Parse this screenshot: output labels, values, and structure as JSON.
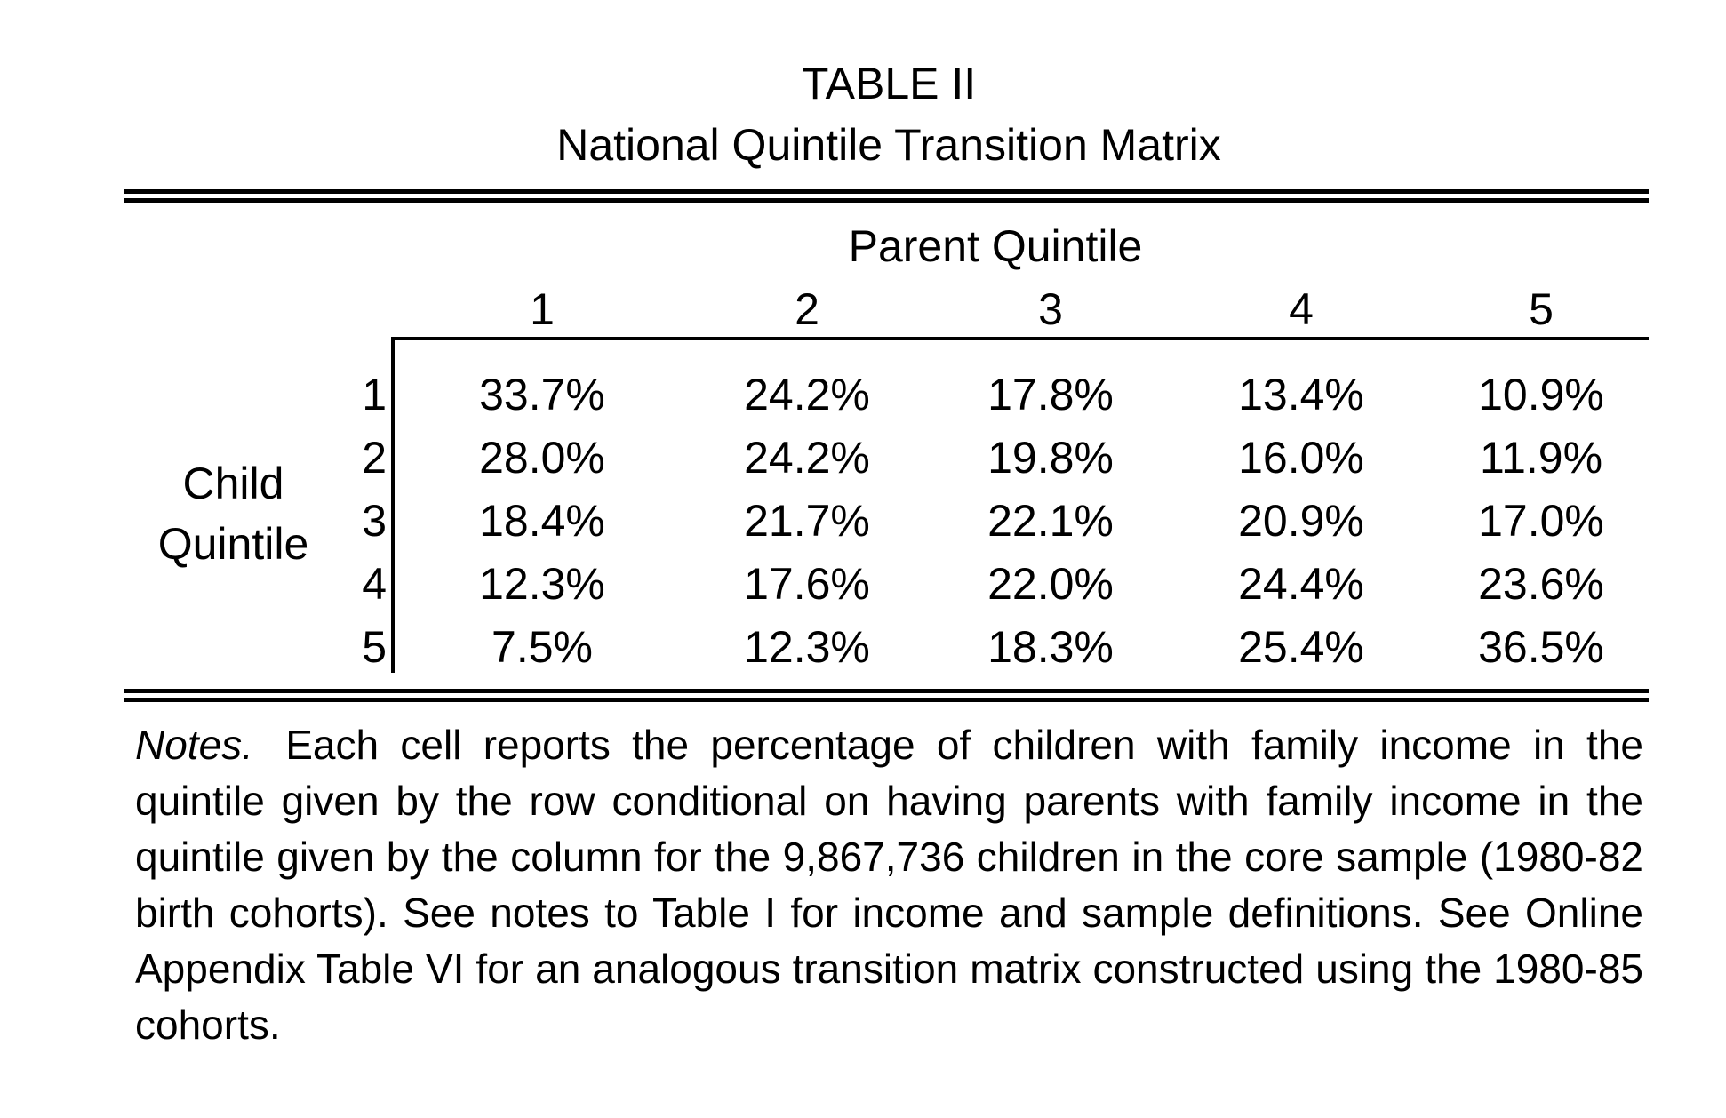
{
  "title": {
    "line1": "TABLE II",
    "line2": "National Quintile Transition Matrix"
  },
  "table": {
    "column_group_label": "Parent Quintile",
    "row_group_label_line1": "Child",
    "row_group_label_line2": "Quintile",
    "columns": [
      "1",
      "2",
      "3",
      "4",
      "5"
    ],
    "rows": [
      {
        "label": "1",
        "cells": [
          "33.7%",
          "24.2%",
          "17.8%",
          "13.4%",
          "10.9%"
        ]
      },
      {
        "label": "2",
        "cells": [
          "28.0%",
          "24.2%",
          "19.8%",
          "16.0%",
          "11.9%"
        ]
      },
      {
        "label": "3",
        "cells": [
          "18.4%",
          "21.7%",
          "22.1%",
          "20.9%",
          "17.0%"
        ]
      },
      {
        "label": "4",
        "cells": [
          "12.3%",
          "17.6%",
          "22.0%",
          "24.4%",
          "23.6%"
        ]
      },
      {
        "label": "5",
        "cells": [
          "7.5%",
          "12.3%",
          "18.3%",
          "25.4%",
          "36.5%"
        ]
      }
    ]
  },
  "notes": {
    "label": "Notes.",
    "text": "Each cell reports the percentage of children with family income in the quintile given by the row conditional on having parents with family income in the quintile given by the column for the 9,867,736 children in the core sample (1980-82 birth cohorts).  See notes to Table I for income and sample definitions. See Online Appendix Table VI for an analogous transition matrix constructed using the 1980-85 cohorts."
  }
}
